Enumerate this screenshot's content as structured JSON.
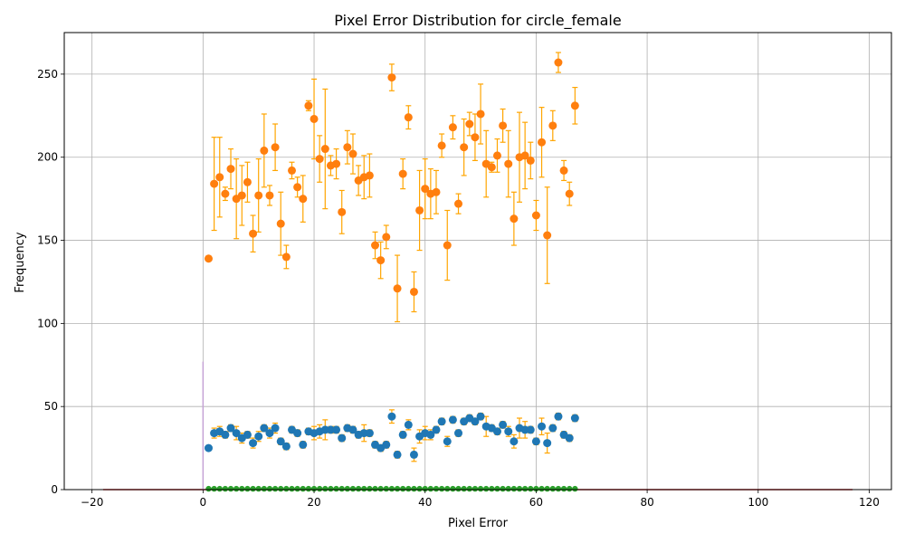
{
  "chart_data": {
    "type": "scatter",
    "title": "Pixel Error Distribution for circle_female",
    "xlabel": "Pixel Error",
    "ylabel": "Frequency",
    "xlim": [
      -25,
      124
    ],
    "ylim": [
      0,
      275
    ],
    "xticks": [
      -20,
      0,
      20,
      40,
      60,
      80,
      100,
      120
    ],
    "yticks": [
      0,
      50,
      100,
      150,
      200,
      250
    ],
    "grid": true,
    "error_bar_color": "#ffa500",
    "series": [
      {
        "color": "#ff7f0e",
        "points": [
          {
            "x": 1,
            "y": 139,
            "e": 1
          },
          {
            "x": 2,
            "y": 184,
            "e": 28
          },
          {
            "x": 3,
            "y": 188,
            "e": 24
          },
          {
            "x": 4,
            "y": 178,
            "e": 4
          },
          {
            "x": 5,
            "y": 193,
            "e": 12
          },
          {
            "x": 6,
            "y": 175,
            "e": 24
          },
          {
            "x": 7,
            "y": 177,
            "e": 18
          },
          {
            "x": 8,
            "y": 185,
            "e": 12
          },
          {
            "x": 9,
            "y": 154,
            "e": 11
          },
          {
            "x": 10,
            "y": 177,
            "e": 22
          },
          {
            "x": 11,
            "y": 204,
            "e": 22
          },
          {
            "x": 12,
            "y": 177,
            "e": 6
          },
          {
            "x": 13,
            "y": 206,
            "e": 14
          },
          {
            "x": 14,
            "y": 160,
            "e": 19
          },
          {
            "x": 15,
            "y": 140,
            "e": 7
          },
          {
            "x": 16,
            "y": 192,
            "e": 5
          },
          {
            "x": 17,
            "y": 182,
            "e": 6
          },
          {
            "x": 18,
            "y": 175,
            "e": 14
          },
          {
            "x": 19,
            "y": 231,
            "e": 3
          },
          {
            "x": 20,
            "y": 223,
            "e": 24
          },
          {
            "x": 21,
            "y": 199,
            "e": 14
          },
          {
            "x": 22,
            "y": 205,
            "e": 36
          },
          {
            "x": 23,
            "y": 195,
            "e": 6
          },
          {
            "x": 24,
            "y": 196,
            "e": 9
          },
          {
            "x": 25,
            "y": 167,
            "e": 13
          },
          {
            "x": 26,
            "y": 206,
            "e": 10
          },
          {
            "x": 27,
            "y": 202,
            "e": 12
          },
          {
            "x": 28,
            "y": 186,
            "e": 9
          },
          {
            "x": 29,
            "y": 188,
            "e": 13
          },
          {
            "x": 30,
            "y": 189,
            "e": 13
          },
          {
            "x": 31,
            "y": 147,
            "e": 8
          },
          {
            "x": 32,
            "y": 138,
            "e": 11
          },
          {
            "x": 33,
            "y": 152,
            "e": 7
          },
          {
            "x": 34,
            "y": 248,
            "e": 8
          },
          {
            "x": 35,
            "y": 121,
            "e": 20
          },
          {
            "x": 36,
            "y": 190,
            "e": 9
          },
          {
            "x": 37,
            "y": 224,
            "e": 7
          },
          {
            "x": 38,
            "y": 119,
            "e": 12
          },
          {
            "x": 39,
            "y": 168,
            "e": 24
          },
          {
            "x": 40,
            "y": 181,
            "e": 18
          },
          {
            "x": 41,
            "y": 178,
            "e": 15
          },
          {
            "x": 42,
            "y": 179,
            "e": 13
          },
          {
            "x": 43,
            "y": 207,
            "e": 7
          },
          {
            "x": 44,
            "y": 147,
            "e": 21
          },
          {
            "x": 45,
            "y": 218,
            "e": 7
          },
          {
            "x": 46,
            "y": 172,
            "e": 6
          },
          {
            "x": 47,
            "y": 206,
            "e": 17
          },
          {
            "x": 48,
            "y": 220,
            "e": 7
          },
          {
            "x": 49,
            "y": 212,
            "e": 14
          },
          {
            "x": 50,
            "y": 226,
            "e": 18
          },
          {
            "x": 51,
            "y": 196,
            "e": 20
          },
          {
            "x": 52,
            "y": 194,
            "e": 3
          },
          {
            "x": 53,
            "y": 201,
            "e": 10
          },
          {
            "x": 54,
            "y": 219,
            "e": 10
          },
          {
            "x": 55,
            "y": 196,
            "e": 20
          },
          {
            "x": 56,
            "y": 163,
            "e": 16
          },
          {
            "x": 57,
            "y": 200,
            "e": 27
          },
          {
            "x": 58,
            "y": 201,
            "e": 20
          },
          {
            "x": 59,
            "y": 198,
            "e": 11
          },
          {
            "x": 60,
            "y": 165,
            "e": 9
          },
          {
            "x": 61,
            "y": 209,
            "e": 21
          },
          {
            "x": 62,
            "y": 153,
            "e": 29
          },
          {
            "x": 63,
            "y": 219,
            "e": 9
          },
          {
            "x": 64,
            "y": 257,
            "e": 6
          },
          {
            "x": 65,
            "y": 192,
            "e": 6
          },
          {
            "x": 66,
            "y": 178,
            "e": 7
          },
          {
            "x": 67,
            "y": 231,
            "e": 11
          }
        ]
      },
      {
        "color": "#1f77b4",
        "points": [
          {
            "x": 1,
            "y": 25,
            "e": 1
          },
          {
            "x": 2,
            "y": 34,
            "e": 3
          },
          {
            "x": 3,
            "y": 35,
            "e": 3
          },
          {
            "x": 4,
            "y": 33,
            "e": 2
          },
          {
            "x": 5,
            "y": 37,
            "e": 2
          },
          {
            "x": 6,
            "y": 34,
            "e": 4
          },
          {
            "x": 7,
            "y": 31,
            "e": 3
          },
          {
            "x": 8,
            "y": 33,
            "e": 2
          },
          {
            "x": 9,
            "y": 28,
            "e": 3
          },
          {
            "x": 10,
            "y": 32,
            "e": 3
          },
          {
            "x": 11,
            "y": 37,
            "e": 2
          },
          {
            "x": 12,
            "y": 34,
            "e": 3
          },
          {
            "x": 13,
            "y": 37,
            "e": 3
          },
          {
            "x": 14,
            "y": 29,
            "e": 2
          },
          {
            "x": 15,
            "y": 26,
            "e": 2
          },
          {
            "x": 16,
            "y": 36,
            "e": 2
          },
          {
            "x": 17,
            "y": 34,
            "e": 2
          },
          {
            "x": 18,
            "y": 27,
            "e": 2
          },
          {
            "x": 19,
            "y": 35,
            "e": 2
          },
          {
            "x": 20,
            "y": 34,
            "e": 4
          },
          {
            "x": 21,
            "y": 35,
            "e": 4
          },
          {
            "x": 22,
            "y": 36,
            "e": 6
          },
          {
            "x": 23,
            "y": 36,
            "e": 2
          },
          {
            "x": 24,
            "y": 36,
            "e": 2
          },
          {
            "x": 25,
            "y": 31,
            "e": 2
          },
          {
            "x": 26,
            "y": 37,
            "e": 2
          },
          {
            "x": 27,
            "y": 36,
            "e": 2
          },
          {
            "x": 28,
            "y": 33,
            "e": 2
          },
          {
            "x": 29,
            "y": 34,
            "e": 5
          },
          {
            "x": 30,
            "y": 34,
            "e": 2
          },
          {
            "x": 31,
            "y": 27,
            "e": 2
          },
          {
            "x": 32,
            "y": 25,
            "e": 2
          },
          {
            "x": 33,
            "y": 27,
            "e": 2
          },
          {
            "x": 34,
            "y": 44,
            "e": 4
          },
          {
            "x": 35,
            "y": 21,
            "e": 2
          },
          {
            "x": 36,
            "y": 33,
            "e": 2
          },
          {
            "x": 37,
            "y": 39,
            "e": 3
          },
          {
            "x": 38,
            "y": 21,
            "e": 4
          },
          {
            "x": 39,
            "y": 32,
            "e": 4
          },
          {
            "x": 40,
            "y": 34,
            "e": 4
          },
          {
            "x": 41,
            "y": 33,
            "e": 3
          },
          {
            "x": 42,
            "y": 36,
            "e": 2
          },
          {
            "x": 43,
            "y": 41,
            "e": 2
          },
          {
            "x": 44,
            "y": 29,
            "e": 3
          },
          {
            "x": 45,
            "y": 42,
            "e": 2
          },
          {
            "x": 46,
            "y": 34,
            "e": 2
          },
          {
            "x": 47,
            "y": 41,
            "e": 2
          },
          {
            "x": 48,
            "y": 43,
            "e": 2
          },
          {
            "x": 49,
            "y": 41,
            "e": 2
          },
          {
            "x": 50,
            "y": 44,
            "e": 2
          },
          {
            "x": 51,
            "y": 38,
            "e": 6
          },
          {
            "x": 52,
            "y": 37,
            "e": 2
          },
          {
            "x": 53,
            "y": 35,
            "e": 2
          },
          {
            "x": 54,
            "y": 39,
            "e": 2
          },
          {
            "x": 55,
            "y": 35,
            "e": 3
          },
          {
            "x": 56,
            "y": 29,
            "e": 4
          },
          {
            "x": 57,
            "y": 37,
            "e": 6
          },
          {
            "x": 58,
            "y": 36,
            "e": 5
          },
          {
            "x": 59,
            "y": 36,
            "e": 2
          },
          {
            "x": 60,
            "y": 29,
            "e": 2
          },
          {
            "x": 61,
            "y": 38,
            "e": 5
          },
          {
            "x": 62,
            "y": 28,
            "e": 6
          },
          {
            "x": 63,
            "y": 37,
            "e": 2
          },
          {
            "x": 64,
            "y": 44,
            "e": 2
          },
          {
            "x": 65,
            "y": 33,
            "e": 2
          },
          {
            "x": 66,
            "y": 31,
            "e": 2
          },
          {
            "x": 67,
            "y": 43,
            "e": 2
          }
        ]
      },
      {
        "color": "#2ca02c",
        "x_start": 1,
        "x_end": 67,
        "y": 0.5
      }
    ],
    "baseline": {
      "color": "#d62728",
      "x_start": -18,
      "x_end": 117,
      "y": 0
    },
    "spike": {
      "color": "#c5a3d6",
      "x": 0,
      "y_top": 77
    }
  }
}
